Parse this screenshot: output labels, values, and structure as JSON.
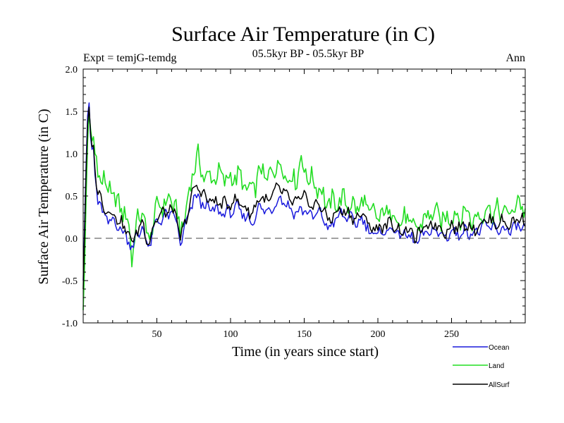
{
  "chart_data": {
    "type": "line",
    "title": "Surface Air Temperature (in C)",
    "subtitle": "05.5kyr BP - 05.5kyr BP",
    "experiment_label": "Expt = temjG-temdg",
    "season_label": "Ann",
    "xlabel": "Time (in years since start)",
    "ylabel": "Surface Air Temperature (in C)",
    "xlim": [
      0,
      300
    ],
    "ylim": [
      -1.0,
      2.0
    ],
    "x_ticks": [
      50,
      100,
      150,
      200,
      250
    ],
    "y_ticks": [
      -1.0,
      -0.5,
      0.0,
      0.5,
      1.0,
      1.5,
      2.0
    ],
    "y_tick_labels": [
      "-1.0",
      "-0.5",
      "0.0",
      "0.5",
      "1.0",
      "1.5",
      "2.0"
    ],
    "zero_line": "dashed",
    "legend_position": "bottom-right",
    "series_generation": "approximate trace; values estimated from gridlines",
    "series": [
      {
        "name": "Ocean",
        "color": "#1a1adc",
        "key": "ocean",
        "anchors": [
          [
            0,
            -0.5
          ],
          [
            1,
            0.2
          ],
          [
            2,
            0.9
          ],
          [
            3,
            1.45
          ],
          [
            4,
            1.6
          ],
          [
            5,
            1.2
          ],
          [
            6,
            1.05
          ],
          [
            7,
            1.08
          ],
          [
            8,
            0.75
          ],
          [
            10,
            0.45
          ],
          [
            12,
            0.38
          ],
          [
            14,
            0.25
          ],
          [
            16,
            0.22
          ],
          [
            18,
            0.2
          ],
          [
            20,
            0.22
          ],
          [
            22,
            0.18
          ],
          [
            25,
            0.12
          ],
          [
            28,
            0.05
          ],
          [
            30,
            0.0
          ],
          [
            32,
            -0.05
          ],
          [
            34,
            -0.1
          ],
          [
            36,
            0.02
          ],
          [
            38,
            0.05
          ],
          [
            40,
            0.15
          ],
          [
            43,
            -0.05
          ],
          [
            45,
            -0.1
          ],
          [
            47,
            0.05
          ],
          [
            50,
            0.2
          ],
          [
            55,
            0.25
          ],
          [
            60,
            0.3
          ],
          [
            63,
            0.2
          ],
          [
            66,
            -0.05
          ],
          [
            68,
            0.05
          ],
          [
            70,
            0.18
          ],
          [
            72,
            0.3
          ],
          [
            75,
            0.45
          ],
          [
            78,
            0.5
          ],
          [
            80,
            0.42
          ],
          [
            85,
            0.35
          ],
          [
            90,
            0.33
          ],
          [
            95,
            0.3
          ],
          [
            100,
            0.32
          ],
          [
            105,
            0.35
          ],
          [
            110,
            0.25
          ],
          [
            115,
            0.2
          ],
          [
            120,
            0.38
          ],
          [
            125,
            0.3
          ],
          [
            130,
            0.4
          ],
          [
            133,
            0.48
          ],
          [
            136,
            0.45
          ],
          [
            140,
            0.35
          ],
          [
            145,
            0.3
          ],
          [
            150,
            0.35
          ],
          [
            155,
            0.25
          ],
          [
            160,
            0.3
          ],
          [
            163,
            0.25
          ],
          [
            166,
            0.1
          ],
          [
            170,
            0.2
          ],
          [
            175,
            0.28
          ],
          [
            180,
            0.25
          ],
          [
            185,
            0.18
          ],
          [
            190,
            0.22
          ],
          [
            193,
            0.15
          ],
          [
            195,
            0.05
          ],
          [
            200,
            0.05
          ],
          [
            205,
            0.08
          ],
          [
            210,
            0.12
          ],
          [
            215,
            0.03
          ],
          [
            220,
            0.05
          ],
          [
            225,
            -0.05
          ],
          [
            228,
            -0.02
          ],
          [
            232,
            0.05
          ],
          [
            238,
            0.1
          ],
          [
            242,
            0.05
          ],
          [
            246,
            0.02
          ],
          [
            250,
            0.08
          ],
          [
            255,
            0.05
          ],
          [
            260,
            0.1
          ],
          [
            265,
            0.05
          ],
          [
            270,
            0.12
          ],
          [
            275,
            0.15
          ],
          [
            280,
            0.1
          ],
          [
            285,
            0.12
          ],
          [
            290,
            0.08
          ],
          [
            295,
            0.15
          ],
          [
            300,
            0.1
          ]
        ]
      },
      {
        "name": "Land",
        "color": "#22dd22",
        "key": "land",
        "anchors": [
          [
            0,
            -0.85
          ],
          [
            1,
            -0.3
          ],
          [
            2,
            0.5
          ],
          [
            3,
            1.15
          ],
          [
            4,
            1.5
          ],
          [
            5,
            1.3
          ],
          [
            6,
            1.15
          ],
          [
            7,
            1.2
          ],
          [
            8,
            1.0
          ],
          [
            10,
            0.8
          ],
          [
            12,
            0.7
          ],
          [
            14,
            0.72
          ],
          [
            16,
            0.55
          ],
          [
            18,
            0.6
          ],
          [
            20,
            0.5
          ],
          [
            22,
            0.42
          ],
          [
            25,
            0.4
          ],
          [
            28,
            0.28
          ],
          [
            30,
            0.2
          ],
          [
            32,
            0.05
          ],
          [
            33,
            -0.25
          ],
          [
            35,
            0.05
          ],
          [
            38,
            0.25
          ],
          [
            40,
            0.3
          ],
          [
            42,
            0.2
          ],
          [
            45,
            -0.1
          ],
          [
            47,
            0.2
          ],
          [
            50,
            0.35
          ],
          [
            55,
            0.42
          ],
          [
            60,
            0.45
          ],
          [
            63,
            0.35
          ],
          [
            66,
            0.05
          ],
          [
            68,
            0.2
          ],
          [
            70,
            0.35
          ],
          [
            72,
            0.55
          ],
          [
            75,
            0.85
          ],
          [
            78,
            0.95
          ],
          [
            80,
            0.8
          ],
          [
            85,
            0.7
          ],
          [
            90,
            0.75
          ],
          [
            95,
            0.72
          ],
          [
            100,
            0.7
          ],
          [
            105,
            0.75
          ],
          [
            110,
            0.6
          ],
          [
            115,
            0.55
          ],
          [
            120,
            0.8
          ],
          [
            125,
            0.7
          ],
          [
            130,
            0.85
          ],
          [
            133,
            0.88
          ],
          [
            136,
            0.8
          ],
          [
            140,
            0.7
          ],
          [
            145,
            0.72
          ],
          [
            148,
            0.95
          ],
          [
            150,
            0.8
          ],
          [
            155,
            0.68
          ],
          [
            160,
            0.62
          ],
          [
            165,
            0.4
          ],
          [
            170,
            0.42
          ],
          [
            175,
            0.45
          ],
          [
            180,
            0.42
          ],
          [
            185,
            0.35
          ],
          [
            190,
            0.42
          ],
          [
            195,
            0.3
          ],
          [
            200,
            0.25
          ],
          [
            205,
            0.3
          ],
          [
            210,
            0.32
          ],
          [
            215,
            0.2
          ],
          [
            220,
            0.22
          ],
          [
            225,
            0.1
          ],
          [
            228,
            0.15
          ],
          [
            232,
            0.25
          ],
          [
            238,
            0.3
          ],
          [
            242,
            0.25
          ],
          [
            246,
            0.2
          ],
          [
            250,
            0.3
          ],
          [
            255,
            0.25
          ],
          [
            260,
            0.32
          ],
          [
            265,
            0.2
          ],
          [
            270,
            0.3
          ],
          [
            275,
            0.35
          ],
          [
            280,
            0.3
          ],
          [
            285,
            0.32
          ],
          [
            290,
            0.28
          ],
          [
            295,
            0.45
          ],
          [
            300,
            0.35
          ]
        ]
      },
      {
        "name": "AllSurf",
        "color": "#000000",
        "key": "allsurf",
        "anchors": [
          [
            0,
            -0.6
          ],
          [
            1,
            0.1
          ],
          [
            2,
            0.8
          ],
          [
            3,
            1.35
          ],
          [
            4,
            1.55
          ],
          [
            5,
            1.25
          ],
          [
            6,
            1.08
          ],
          [
            7,
            1.1
          ],
          [
            8,
            0.82
          ],
          [
            10,
            0.55
          ],
          [
            12,
            0.47
          ],
          [
            14,
            0.38
          ],
          [
            16,
            0.33
          ],
          [
            18,
            0.32
          ],
          [
            20,
            0.3
          ],
          [
            22,
            0.25
          ],
          [
            25,
            0.2
          ],
          [
            28,
            0.12
          ],
          [
            30,
            0.08
          ],
          [
            32,
            0.0
          ],
          [
            34,
            -0.05
          ],
          [
            36,
            0.08
          ],
          [
            38,
            0.12
          ],
          [
            40,
            0.2
          ],
          [
            43,
            0.02
          ],
          [
            45,
            -0.05
          ],
          [
            47,
            0.1
          ],
          [
            50,
            0.25
          ],
          [
            55,
            0.3
          ],
          [
            60,
            0.35
          ],
          [
            63,
            0.25
          ],
          [
            66,
            0.0
          ],
          [
            68,
            0.1
          ],
          [
            70,
            0.24
          ],
          [
            72,
            0.38
          ],
          [
            75,
            0.58
          ],
          [
            78,
            0.62
          ],
          [
            80,
            0.55
          ],
          [
            85,
            0.45
          ],
          [
            90,
            0.43
          ],
          [
            95,
            0.4
          ],
          [
            100,
            0.42
          ],
          [
            105,
            0.45
          ],
          [
            110,
            0.35
          ],
          [
            115,
            0.3
          ],
          [
            120,
            0.5
          ],
          [
            125,
            0.42
          ],
          [
            130,
            0.55
          ],
          [
            133,
            0.6
          ],
          [
            136,
            0.55
          ],
          [
            140,
            0.45
          ],
          [
            145,
            0.42
          ],
          [
            150,
            0.5
          ],
          [
            155,
            0.38
          ],
          [
            160,
            0.4
          ],
          [
            163,
            0.35
          ],
          [
            166,
            0.2
          ],
          [
            170,
            0.28
          ],
          [
            175,
            0.33
          ],
          [
            180,
            0.3
          ],
          [
            185,
            0.23
          ],
          [
            190,
            0.28
          ],
          [
            193,
            0.2
          ],
          [
            195,
            0.12
          ],
          [
            200,
            0.12
          ],
          [
            205,
            0.15
          ],
          [
            210,
            0.18
          ],
          [
            215,
            0.08
          ],
          [
            220,
            0.1
          ],
          [
            225,
            0.02
          ],
          [
            228,
            0.05
          ],
          [
            232,
            0.12
          ],
          [
            238,
            0.18
          ],
          [
            242,
            0.12
          ],
          [
            246,
            0.08
          ],
          [
            250,
            0.15
          ],
          [
            255,
            0.12
          ],
          [
            260,
            0.18
          ],
          [
            265,
            0.1
          ],
          [
            270,
            0.18
          ],
          [
            275,
            0.22
          ],
          [
            280,
            0.18
          ],
          [
            285,
            0.2
          ],
          [
            290,
            0.15
          ],
          [
            295,
            0.25
          ],
          [
            300,
            0.18
          ]
        ]
      }
    ]
  }
}
